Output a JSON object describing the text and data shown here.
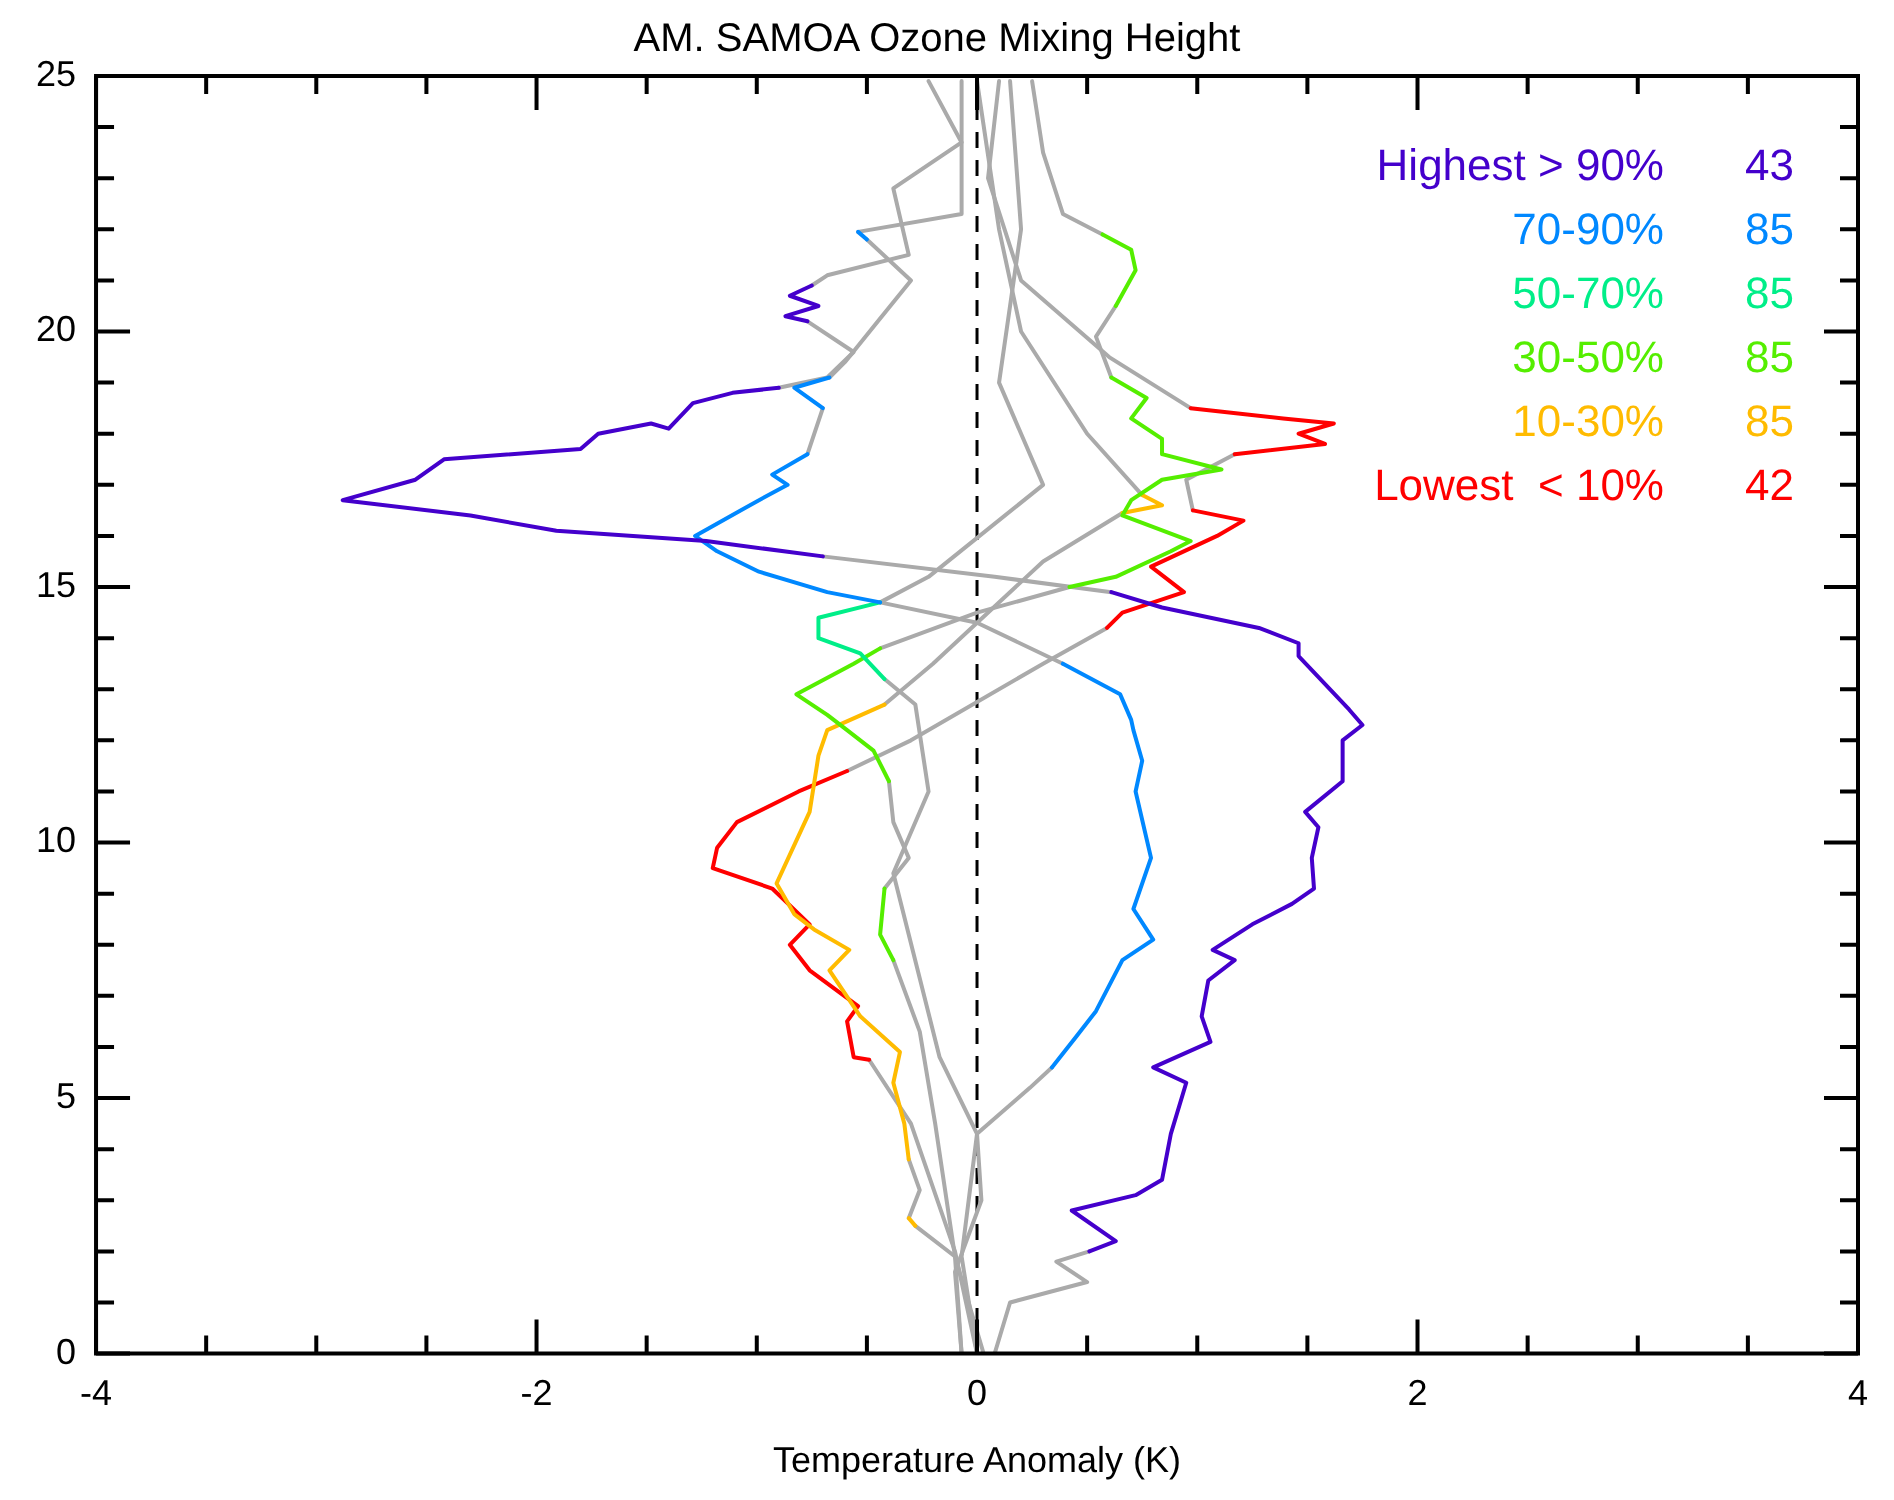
{
  "chart_data": {
    "type": "line",
    "title": "AM. SAMOA Ozone Mixing Height",
    "xlabel": "Temperature Anomaly (K)",
    "xlim": [
      -4,
      4
    ],
    "ylim": [
      0,
      25
    ],
    "xticks": [
      -4,
      {
        "value": -3.5,
        "label": null
      },
      {
        "value": -3,
        "label": null
      },
      {
        "value": -2.5,
        "label": null
      },
      -2,
      {
        "value": -1.5,
        "label": null
      },
      {
        "value": -1,
        "label": null
      },
      {
        "value": -0.5,
        "label": null
      },
      0,
      {
        "value": 0.5,
        "label": null
      },
      {
        "value": 1,
        "label": null
      },
      {
        "value": 1.5,
        "label": null
      },
      2,
      {
        "value": 2.5,
        "label": null
      },
      {
        "value": 3,
        "label": null
      },
      {
        "value": 3.5,
        "label": null
      },
      4
    ],
    "yticks": [
      0,
      {
        "value": 1,
        "label": null
      },
      {
        "value": 2,
        "label": null
      },
      {
        "value": 3,
        "label": null
      },
      {
        "value": 4,
        "label": null
      },
      5,
      {
        "value": 6,
        "label": null
      },
      {
        "value": 7,
        "label": null
      },
      {
        "value": 8,
        "label": null
      },
      {
        "value": 9,
        "label": null
      },
      10,
      {
        "value": 11,
        "label": null
      },
      {
        "value": 12,
        "label": null
      },
      {
        "value": 13,
        "label": null
      },
      {
        "value": 14,
        "label": null
      },
      15,
      {
        "value": 16,
        "label": null
      },
      {
        "value": 17,
        "label": null
      },
      {
        "value": 18,
        "label": null
      },
      {
        "value": 19,
        "label": null
      },
      20,
      {
        "value": 21,
        "label": null
      },
      {
        "value": 22,
        "label": null
      },
      {
        "value": 23,
        "label": null
      },
      {
        "value": 24,
        "label": null
      },
      25
    ],
    "grid": false,
    "legend": "top right",
    "marker": "none",
    "line_style": "solid",
    "ref_lines": [
      {
        "axis": "x",
        "value": 0,
        "color": "#000000",
        "line_style": "dashed"
      }
    ],
    "annotations": [
      "43",
      "85",
      "85",
      "85",
      "85",
      "42"
    ],
    "series": [
      {
        "name": "Highest > 90%",
        "color": "#4400cc",
        "x": [
          -0.9,
          -1.11,
          -1.29,
          -1.4,
          -1.48,
          -1.72,
          -1.8,
          -2.42,
          -2.55,
          -2.88,
          -2.3,
          -1.91,
          -1.23,
          -0.7
        ],
        "values": [
          18.9,
          18.8,
          18.6,
          18.1,
          18.2,
          18,
          17.7,
          17.5,
          17.1,
          16.7,
          16.4,
          16.1,
          15.9,
          15.6
        ]
      },
      {
        "color": "#4400cc",
        "x": [
          -0.75,
          -0.85,
          -0.72,
          -0.87,
          -0.77
        ],
        "values": [
          20.9,
          20.7,
          20.5,
          20.3,
          20.2
        ]
      },
      {
        "color": "#4400cc",
        "x": [
          0.61,
          0.84,
          1.28,
          1.46,
          1.46,
          1.69,
          1.75,
          1.66,
          1.66,
          1.49,
          1.55,
          1.52,
          1.53,
          1.43,
          1.25,
          1.07,
          1.17,
          1.05,
          1.02,
          1.06,
          0.8,
          0.95,
          0.88,
          0.84,
          0.72,
          0.43,
          0.63,
          0.51
        ],
        "values": [
          14.9,
          14.6,
          14.2,
          13.9,
          13.65,
          12.6,
          12.3,
          12,
          11.2,
          10.6,
          10.3,
          9.7,
          9.1,
          8.8,
          8.4,
          7.9,
          7.7,
          7.3,
          6.6,
          6.1,
          5.6,
          5.3,
          4.3,
          3.4,
          3.1,
          2.8,
          2.2,
          2
        ]
      },
      {
        "name": "70-90%",
        "color": "#0088ff",
        "x": [
          -0.77,
          -0.93,
          -0.86,
          -0.99,
          -1.28,
          -1.18,
          -0.99,
          -0.68,
          -0.44
        ],
        "values": [
          17.6,
          17.2,
          17,
          16.7,
          16,
          15.7,
          15.3,
          14.9,
          14.7
        ]
      },
      {
        "color": "#0088ff",
        "x": [
          -0.54,
          -0.5
        ],
        "values": [
          21.95,
          21.8
        ]
      },
      {
        "color": "#0088ff",
        "x": [
          -0.67,
          -0.83,
          -0.7
        ],
        "values": [
          19.1,
          18.9,
          18.5
        ]
      },
      {
        "color": "#0088ff",
        "x": [
          0.39,
          0.65,
          0.7,
          0.71,
          0.75,
          0.72,
          0.79,
          0.71,
          0.8,
          0.66,
          0.54,
          0.45,
          0.34
        ],
        "values": [
          13.5,
          12.9,
          12.4,
          12.2,
          11.6,
          11,
          9.7,
          8.7,
          8.1,
          7.7,
          6.7,
          6.2,
          5.6
        ]
      },
      {
        "name": "50-70%",
        "color": "#00ee88",
        "x": [
          -0.44,
          -0.72,
          -0.72,
          -0.53,
          -0.42
        ],
        "values": [
          14.7,
          14.4,
          14,
          13.7,
          13.2
        ]
      },
      {
        "name": "30-50%",
        "color": "#55ee00",
        "x": [
          0.61,
          0.77,
          0.7,
          0.84,
          0.84,
          1.11,
          0.84,
          0.7,
          0.66,
          0.97,
          0.88,
          0.63,
          0.42
        ],
        "values": [
          19.1,
          18.7,
          18.3,
          17.9,
          17.6,
          17.3,
          17.1,
          16.7,
          16.4,
          15.9,
          15.7,
          15.2,
          15
        ]
      },
      {
        "color": "#55ee00",
        "x": [
          0.57,
          0.7,
          0.72,
          0.63
        ],
        "values": [
          21.9,
          21.6,
          21.2,
          20.5
        ]
      },
      {
        "color": "#55ee00",
        "x": [
          -0.44,
          -0.56,
          -0.82,
          -0.68,
          -0.59,
          -0.47,
          -0.4
        ],
        "values": [
          13.8,
          13.5,
          12.9,
          12.5,
          12.2,
          11.8,
          11.2
        ]
      },
      {
        "color": "#55ee00",
        "x": [
          -0.42,
          -0.44,
          -0.38
        ],
        "values": [
          9.1,
          8.2,
          7.7
        ]
      },
      {
        "name": "10-30%",
        "color": "#ffbb00",
        "x": [
          -0.42,
          -0.68,
          -0.72,
          -0.76,
          -0.91,
          -0.83,
          -0.74,
          -0.58,
          -0.67,
          -0.53,
          -0.35,
          -0.38,
          -0.33,
          -0.31
        ],
        "values": [
          12.7,
          12.2,
          11.7,
          10.6,
          9.2,
          8.6,
          8.3,
          7.9,
          7.5,
          6.6,
          5.9,
          5.3,
          4.5,
          3.8
        ]
      },
      {
        "color": "#ffbb00",
        "x": [
          0.75,
          0.84,
          0.66
        ],
        "values": [
          16.8,
          16.6,
          16.45
        ]
      },
      {
        "color": "#ffbb00",
        "x": [
          -0.31,
          -0.28
        ],
        "values": [
          2.65,
          2.5
        ]
      },
      {
        "name": "Lowest  < 10%",
        "color": "#ff0000",
        "x": [
          0.97,
          1.39,
          1.62,
          1.46,
          1.58,
          1.17
        ],
        "values": [
          18.5,
          18.3,
          18.2,
          18,
          17.8,
          17.6
        ]
      },
      {
        "color": "#ff0000",
        "x": [
          0.98,
          1.21,
          1.09,
          0.79,
          0.94,
          0.66,
          0.59
        ],
        "values": [
          16.5,
          16.3,
          16,
          15.4,
          14.9,
          14.5,
          14.2
        ]
      },
      {
        "color": "#ff0000",
        "x": [
          -0.59,
          -0.81,
          -1.09,
          -1.18,
          -1.2,
          -0.93,
          -0.76,
          -0.85,
          -0.76,
          -0.54,
          -0.59,
          -0.56,
          -0.49
        ],
        "values": [
          11.4,
          11,
          10.4,
          9.9,
          9.5,
          9.1,
          8.4,
          8,
          7.5,
          6.8,
          6.5,
          5.8,
          5.75
        ]
      },
      {
        "color": "#aaaaaa",
        "x": [
          -0.22,
          -0.07,
          -0.38,
          -0.31,
          -0.68,
          -0.75
        ],
        "values": [
          24.9,
          23.7,
          22.8,
          21.5,
          21.1,
          20.9
        ]
      },
      {
        "color": "#aaaaaa",
        "x": [
          -0.77,
          -0.56,
          -0.68,
          -0.9
        ],
        "values": [
          20.2,
          19.6,
          19.1,
          18.9
        ]
      },
      {
        "color": "#aaaaaa",
        "x": [
          -0.7,
          0.08,
          0.61
        ],
        "values": [
          15.6,
          15.2,
          14.9
        ]
      },
      {
        "color": "#aaaaaa",
        "x": [
          0.51,
          0.36,
          0.5,
          0.15,
          0.08
        ],
        "values": [
          2,
          1.8,
          1.4,
          1,
          0
        ]
      },
      {
        "color": "#aaaaaa",
        "x": [
          -0.07,
          -0.07,
          -0.54
        ],
        "values": [
          24.9,
          22.3,
          21.95
        ]
      },
      {
        "color": "#aaaaaa",
        "x": [
          -0.5,
          -0.3,
          -0.45,
          -0.6,
          -0.67
        ],
        "values": [
          21.8,
          21,
          20.2,
          19.4,
          19.1
        ]
      },
      {
        "color": "#aaaaaa",
        "x": [
          -0.7,
          -0.77
        ],
        "values": [
          18.5,
          17.6
        ]
      },
      {
        "color": "#aaaaaa",
        "x": [
          -0.44,
          0,
          0.39
        ],
        "values": [
          14.7,
          14.3,
          13.5
        ]
      },
      {
        "color": "#aaaaaa",
        "x": [
          0.34,
          0.24,
          0,
          0.02,
          -0.1,
          -0.07
        ],
        "values": [
          5.6,
          5.2,
          4.3,
          3,
          1.6,
          0
        ]
      },
      {
        "color": "#aaaaaa",
        "x": [
          0.15,
          0.2,
          0.1,
          0.3,
          -0.22,
          -0.44
        ],
        "values": [
          24.9,
          22,
          19,
          17,
          15.2,
          14.7
        ]
      },
      {
        "color": "#aaaaaa",
        "x": [
          -0.42,
          -0.28,
          -0.22,
          -0.38,
          -0.17,
          0,
          -0.07,
          0
        ],
        "values": [
          13.2,
          12.7,
          11,
          9.4,
          5.8,
          4.3,
          1.9,
          0
        ]
      },
      {
        "color": "#aaaaaa",
        "x": [
          0.25,
          0.3,
          0.39,
          0.57
        ],
        "values": [
          24.9,
          23.5,
          22.3,
          21.9
        ]
      },
      {
        "color": "#aaaaaa",
        "x": [
          0.63,
          0.54,
          0.61
        ],
        "values": [
          20.5,
          19.9,
          19.1
        ]
      },
      {
        "color": "#aaaaaa",
        "x": [
          0.42,
          0,
          -0.44
        ],
        "values": [
          15,
          14.5,
          13.8
        ]
      },
      {
        "color": "#aaaaaa",
        "x": [
          -0.4,
          -0.38,
          -0.31,
          -0.42
        ],
        "values": [
          11.2,
          10.4,
          9.7,
          9.1
        ]
      },
      {
        "color": "#aaaaaa",
        "x": [
          -0.38,
          -0.26,
          -0.19,
          -0.1,
          -0.07
        ],
        "values": [
          7.7,
          6.3,
          4.5,
          1.9,
          0
        ]
      },
      {
        "color": "#aaaaaa",
        "x": [
          0,
          0.1,
          0.2,
          0.5,
          0.75
        ],
        "values": [
          24.9,
          22,
          20,
          18,
          16.8
        ]
      },
      {
        "color": "#aaaaaa",
        "x": [
          0.66,
          0.3,
          -0.2,
          -0.42
        ],
        "values": [
          16.45,
          15.5,
          13.5,
          12.7
        ]
      },
      {
        "color": "#aaaaaa",
        "x": [
          -0.31,
          -0.26,
          -0.31
        ],
        "values": [
          3.8,
          3.2,
          2.65
        ]
      },
      {
        "color": "#aaaaaa",
        "x": [
          -0.28,
          -0.1,
          0.03
        ],
        "values": [
          2.5,
          1.9,
          0
        ]
      },
      {
        "color": "#aaaaaa",
        "x": [
          0.1,
          0.05,
          0.2,
          0.6,
          0.97
        ],
        "values": [
          24.9,
          23,
          21,
          19.5,
          18.5
        ]
      },
      {
        "color": "#aaaaaa",
        "x": [
          1.17,
          0.95,
          0.98
        ],
        "values": [
          17.6,
          17.1,
          16.5
        ]
      },
      {
        "color": "#aaaaaa",
        "x": [
          0.59,
          0.3,
          -0.3,
          -0.59
        ],
        "values": [
          14.2,
          13.5,
          12,
          11.4
        ]
      },
      {
        "color": "#aaaaaa",
        "x": [
          -0.49,
          -0.3,
          -0.1,
          0
        ],
        "values": [
          5.75,
          4.5,
          2,
          0
        ]
      }
    ]
  }
}
